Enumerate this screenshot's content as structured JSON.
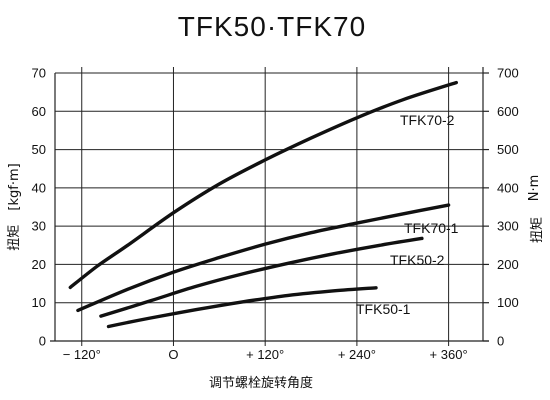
{
  "chart_data": {
    "type": "line",
    "title": "TFK50·TFK70",
    "xlabel": "调节螺栓旋转角度",
    "ylabel_left_prefix": "扭矩",
    "ylabel_left_unit": "[kgf·m]",
    "ylabel_right_prefix": "扭矩",
    "ylabel_right_unit": "N·m",
    "x_ticks": [
      {
        "value": -120,
        "label": "− 120°"
      },
      {
        "value": 0,
        "label": "O"
      },
      {
        "value": 120,
        "label": "+ 120°"
      },
      {
        "value": 240,
        "label": "+ 240°"
      },
      {
        "value": 360,
        "label": "+ 360°"
      }
    ],
    "xlim": [
      -155,
      405
    ],
    "ylim_left": [
      0,
      70
    ],
    "ylim_right": [
      0,
      700
    ],
    "y_ticks_left": [
      "0",
      "10",
      "20",
      "30",
      "40",
      "50",
      "60",
      "70"
    ],
    "y_ticks_right": [
      "0",
      "100",
      "200",
      "300",
      "400",
      "500",
      "600",
      "700"
    ],
    "grid": true,
    "series": [
      {
        "name": "TFK70-2",
        "x": [
          -135,
          -100,
          -60,
          0,
          60,
          120,
          180,
          240,
          300,
          370
        ],
        "y": [
          14.0,
          19.5,
          25.0,
          33.5,
          41.0,
          47.3,
          53.0,
          58.3,
          63.0,
          67.5
        ]
      },
      {
        "name": "TFK70-1",
        "x": [
          -125,
          -60,
          0,
          60,
          120,
          180,
          240,
          300,
          360
        ],
        "y": [
          8.0,
          13.5,
          18.0,
          21.8,
          25.3,
          28.3,
          30.8,
          33.2,
          35.5
        ]
      },
      {
        "name": "TFK50-2",
        "x": [
          -95,
          -30,
          30,
          90,
          150,
          210,
          270,
          325
        ],
        "y": [
          6.5,
          10.5,
          14.3,
          17.5,
          20.3,
          22.8,
          25.0,
          26.8
        ]
      },
      {
        "name": "TFK50-1",
        "x": [
          -85,
          -30,
          30,
          90,
          150,
          210,
          265
        ],
        "y": [
          3.8,
          6.0,
          8.2,
          10.2,
          11.9,
          13.1,
          13.9
        ]
      }
    ]
  }
}
